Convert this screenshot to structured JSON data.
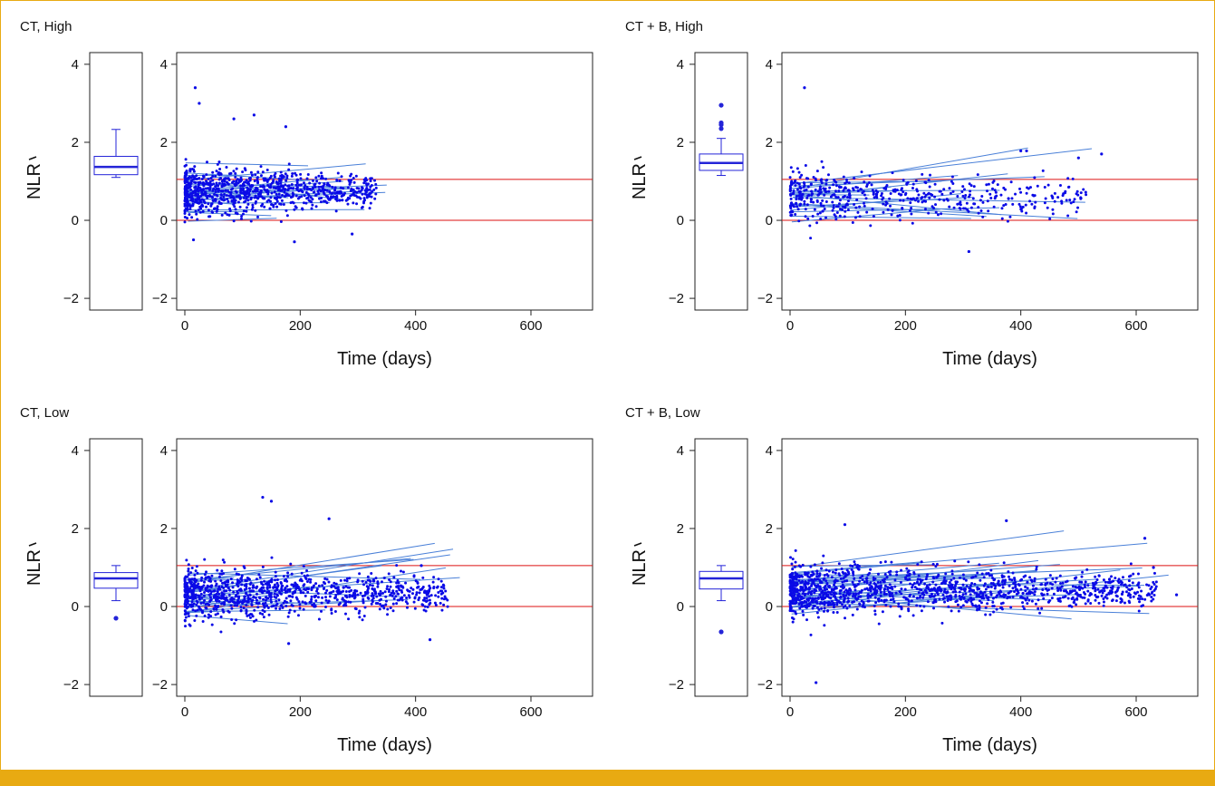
{
  "colors": {
    "border": "#e8aa12",
    "points": "#0a0ae6",
    "trend": "#4a80d8",
    "reference": "#dd1111",
    "box": "#2424d8"
  },
  "chart_data": [
    {
      "type": "scatter",
      "panel_title": "CT, High",
      "xlabel": "Time (days)",
      "ylabel": "NLR",
      "xlim": [
        0,
        700
      ],
      "ylim": [
        -2.3,
        4.3
      ],
      "x_ticks": [
        "0",
        "200",
        "400",
        "600"
      ],
      "y_ticks": [
        "−2",
        "0",
        "2",
        "4"
      ],
      "reference_lines_y": [
        0,
        1.05
      ],
      "boxplot": {
        "min": 1.1,
        "q1": 1.17,
        "median": 1.37,
        "q3": 1.64,
        "max": 2.33,
        "outliers": []
      },
      "x_max_observed": 350,
      "y_center": 0.75,
      "y_spread": 0.45,
      "n_points": 900,
      "n_lines": 26,
      "highlighted_points": [
        [
          18,
          3.4
        ],
        [
          25,
          3.0
        ],
        [
          85,
          2.6
        ],
        [
          120,
          2.7
        ],
        [
          175,
          2.4
        ],
        [
          290,
          -0.35
        ],
        [
          190,
          -0.55
        ],
        [
          15,
          -0.5
        ]
      ]
    },
    {
      "type": "scatter",
      "panel_title": "CT + B, High",
      "xlabel": "Time (days)",
      "ylabel": "NLR",
      "xlim": [
        0,
        700
      ],
      "ylim": [
        -2.3,
        4.3
      ],
      "x_ticks": [
        "0",
        "200",
        "400",
        "600"
      ],
      "y_ticks": [
        "−2",
        "0",
        "2",
        "4"
      ],
      "reference_lines_y": [
        0,
        1.05
      ],
      "boxplot": {
        "min": 1.15,
        "q1": 1.28,
        "median": 1.47,
        "q3": 1.7,
        "max": 2.1,
        "outliers": [
          2.35,
          2.45,
          2.5,
          2.95
        ]
      },
      "x_max_observed": 540,
      "y_center": 0.6,
      "y_spread": 0.45,
      "n_points": 500,
      "n_lines": 20,
      "highlighted_points": [
        [
          25,
          3.4
        ],
        [
          400,
          1.78
        ],
        [
          410,
          1.78
        ],
        [
          500,
          1.6
        ],
        [
          540,
          1.7
        ],
        [
          310,
          -0.8
        ]
      ]
    },
    {
      "type": "scatter",
      "panel_title": "CT, Low",
      "xlabel": "Time (days)",
      "ylabel": "NLR",
      "xlim": [
        0,
        700
      ],
      "ylim": [
        -2.3,
        4.3
      ],
      "x_ticks": [
        "0",
        "200",
        "400",
        "600"
      ],
      "y_ticks": [
        "−2",
        "0",
        "2",
        "4"
      ],
      "reference_lines_y": [
        0,
        1.05
      ],
      "boxplot": {
        "min": 0.15,
        "q1": 0.47,
        "median": 0.72,
        "q3": 0.87,
        "max": 1.05,
        "outliers": [
          -0.3
        ]
      },
      "x_max_observed": 480,
      "y_center": 0.35,
      "y_spread": 0.45,
      "n_points": 1000,
      "n_lines": 24,
      "highlighted_points": [
        [
          135,
          2.8
        ],
        [
          150,
          2.7
        ],
        [
          250,
          2.25
        ],
        [
          425,
          -0.85
        ],
        [
          410,
          1.05
        ],
        [
          180,
          -0.95
        ]
      ]
    },
    {
      "type": "scatter",
      "panel_title": "CT + B, Low",
      "xlabel": "Time (days)",
      "ylabel": "NLR",
      "xlim": [
        0,
        700
      ],
      "ylim": [
        -2.3,
        4.3
      ],
      "x_ticks": [
        "0",
        "200",
        "400",
        "600"
      ],
      "y_ticks": [
        "−2",
        "0",
        "2",
        "4"
      ],
      "reference_lines_y": [
        0,
        1.05
      ],
      "boxplot": {
        "min": 0.15,
        "q1": 0.45,
        "median": 0.72,
        "q3": 0.9,
        "max": 1.05,
        "outliers": [
          -0.65
        ]
      },
      "x_max_observed": 670,
      "y_center": 0.42,
      "y_spread": 0.45,
      "n_points": 1300,
      "n_lines": 30,
      "highlighted_points": [
        [
          45,
          -1.95
        ],
        [
          375,
          2.2
        ],
        [
          615,
          1.75
        ],
        [
          95,
          2.1
        ],
        [
          630,
          1.0
        ],
        [
          670,
          0.3
        ]
      ]
    }
  ]
}
